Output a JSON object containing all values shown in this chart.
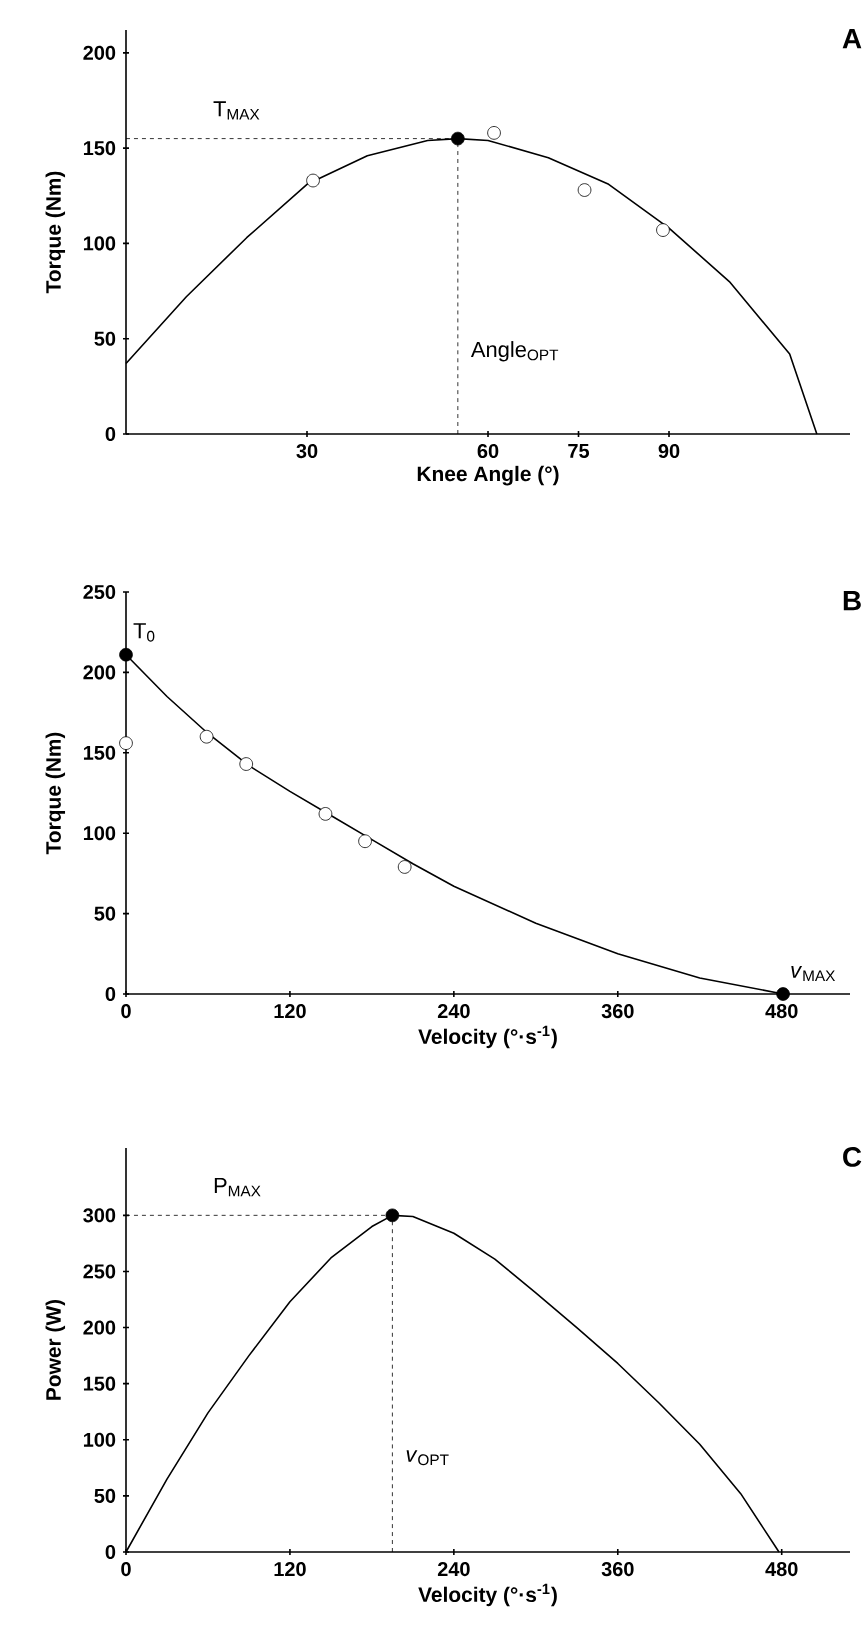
{
  "chart_data": [
    {
      "type": "line",
      "title": "A",
      "xlabel": "Knee Angle (°)",
      "ylabel": "Torque (Nm)",
      "xlim": [
        0,
        120
      ],
      "ylim": [
        0,
        212
      ],
      "xticks": [
        30,
        60,
        75,
        90
      ],
      "yticks": [
        0,
        50,
        100,
        150,
        200
      ],
      "series": [
        {
          "color": "#000000",
          "marker": "none",
          "x": [
            0,
            10,
            20,
            30,
            40,
            50,
            55,
            60,
            70,
            80,
            90,
            100,
            110,
            114.5
          ],
          "values": [
            37,
            72,
            103,
            131,
            146,
            154,
            155,
            154,
            145,
            131,
            108,
            80,
            42,
            0
          ]
        },
        {
          "type": "scatter",
          "color": "#ffffff",
          "marker": "circle",
          "x": [
            31,
            61,
            76,
            89
          ],
          "values": [
            133,
            158,
            128,
            107
          ]
        },
        {
          "type": "scatter",
          "color": "#000000",
          "marker": "circle",
          "x": [
            55
          ],
          "values": [
            155
          ]
        }
      ],
      "ref_lines": [
        {
          "axis": "y",
          "value": 155,
          "label": "T$_{MAX}$",
          "line_style": "dashed"
        },
        {
          "axis": "x",
          "value": 55,
          "label": "Angle$_{OPT}$",
          "line_style": "dashed"
        }
      ]
    },
    {
      "type": "line",
      "title": "B",
      "xlabel": "Velocity (°·s$^{-1}$)",
      "ylabel": "Torque (Nm)",
      "xlim": [
        0,
        530
      ],
      "ylim": [
        0,
        250
      ],
      "xticks": [
        0,
        120,
        240,
        360,
        480
      ],
      "yticks": [
        0,
        50,
        100,
        150,
        200,
        250
      ],
      "series": [
        {
          "color": "#000000",
          "marker": "none",
          "x": [
            0,
            30,
            60,
            90,
            120,
            150,
            180,
            210,
            240,
            300,
            360,
            420,
            481
          ],
          "values": [
            211,
            185,
            162,
            142,
            126,
            111,
            96,
            81,
            67,
            44,
            25,
            10,
            0
          ]
        },
        {
          "type": "scatter",
          "color": "#ffffff",
          "marker": "circle",
          "x": [
            0,
            59,
            88,
            146,
            175,
            204
          ],
          "values": [
            156,
            160,
            143,
            112,
            95,
            79
          ]
        },
        {
          "type": "scatter",
          "color": "#000000",
          "marker": "circle",
          "x": [
            0,
            481
          ],
          "values": [
            211,
            0
          ]
        }
      ],
      "annotations": [
        {
          "text": "T$_{0}$",
          "x": 0,
          "y": 211
        },
        {
          "text": "*v*$_{MAX}$",
          "x": 481,
          "y": 0
        }
      ]
    },
    {
      "type": "line",
      "title": "C",
      "xlabel": "Velocity (°·s$^{-1}$)",
      "ylabel": "Power (W)",
      "xlim": [
        0,
        530
      ],
      "ylim": [
        0,
        360
      ],
      "xticks": [
        0,
        120,
        240,
        360,
        480
      ],
      "yticks": [
        0,
        50,
        100,
        150,
        200,
        250,
        300
      ],
      "series": [
        {
          "color": "#000000",
          "marker": "none",
          "x": [
            0,
            30,
            60,
            90,
            120,
            150,
            180,
            195,
            210,
            240,
            270,
            300,
            330,
            360,
            390,
            420,
            450,
            478
          ],
          "values": [
            0,
            65,
            124,
            175,
            223,
            262,
            290,
            300,
            299,
            284,
            261,
            231,
            200,
            168,
            133,
            96,
            52,
            0
          ]
        },
        {
          "type": "scatter",
          "color": "#000000",
          "marker": "circle",
          "x": [
            195
          ],
          "values": [
            300
          ]
        }
      ],
      "ref_lines": [
        {
          "axis": "y",
          "value": 300,
          "label": "P$_{MAX}$",
          "line_style": "dashed"
        },
        {
          "axis": "x",
          "value": 195,
          "label": "*v*$_{OPT}$",
          "line_style": "dashed"
        }
      ]
    }
  ]
}
